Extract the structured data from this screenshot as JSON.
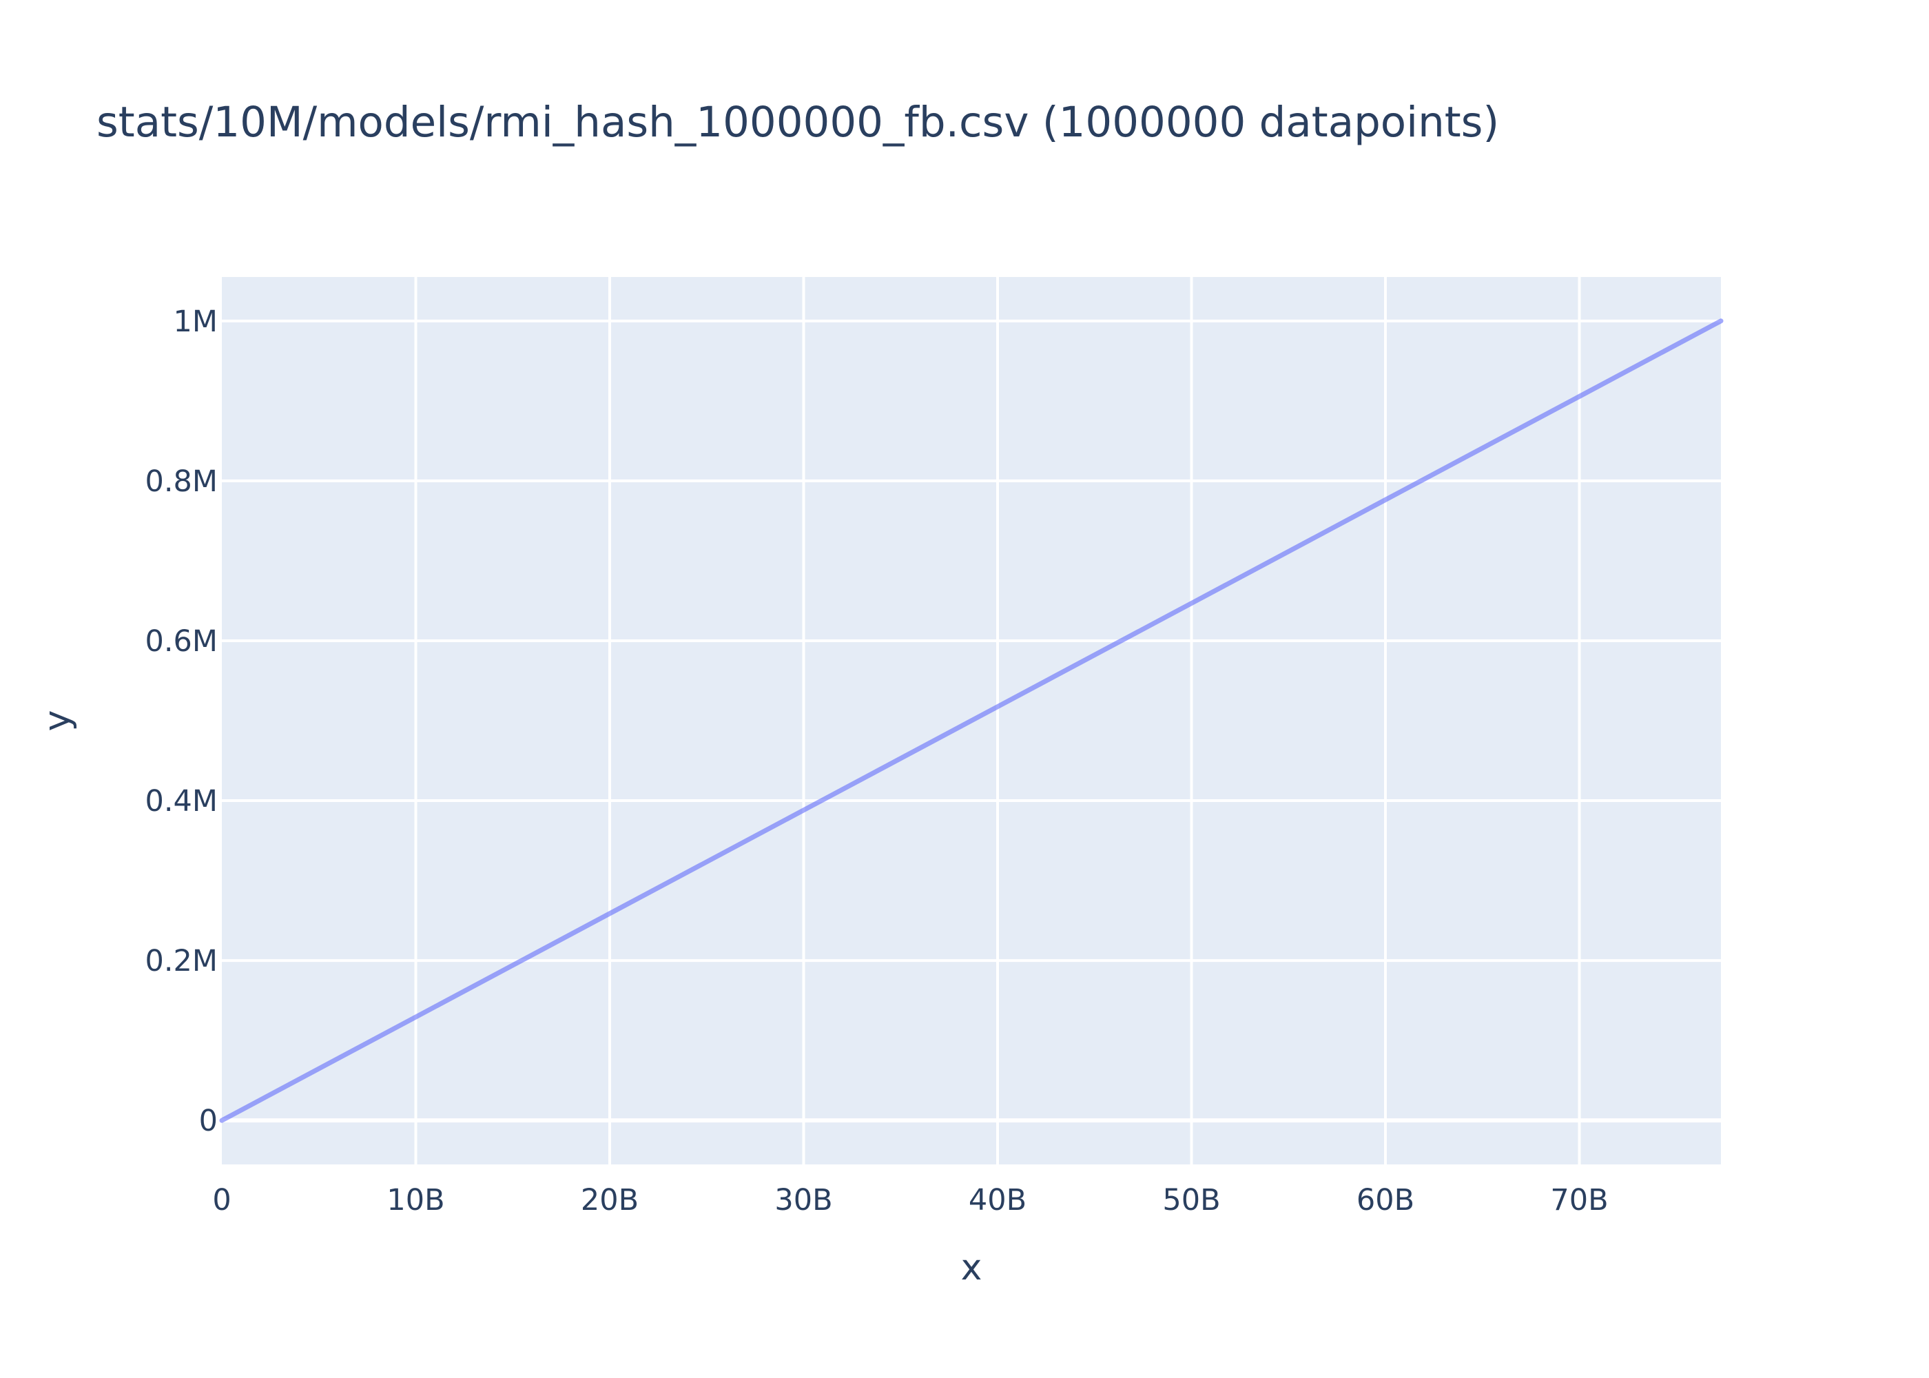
{
  "chart_data": {
    "type": "line",
    "title": "stats/10M/models/rmi_hash_1000000_fb.csv (1000000 datapoints)",
    "xlabel": "x",
    "ylabel": "y",
    "xlim": [
      0,
      77300000000
    ],
    "ylim": [
      -55000,
      1055000
    ],
    "x_ticks": [
      {
        "value": 0,
        "label": "0"
      },
      {
        "value": 10000000000,
        "label": "10B"
      },
      {
        "value": 20000000000,
        "label": "20B"
      },
      {
        "value": 30000000000,
        "label": "30B"
      },
      {
        "value": 40000000000,
        "label": "40B"
      },
      {
        "value": 50000000000,
        "label": "50B"
      },
      {
        "value": 60000000000,
        "label": "60B"
      },
      {
        "value": 70000000000,
        "label": "70B"
      }
    ],
    "y_ticks": [
      {
        "value": 0,
        "label": "0"
      },
      {
        "value": 200000,
        "label": "0.2M"
      },
      {
        "value": 400000,
        "label": "0.4M"
      },
      {
        "value": 600000,
        "label": "0.6M"
      },
      {
        "value": 800000,
        "label": "0.8M"
      },
      {
        "value": 1000000,
        "label": "1M"
      }
    ],
    "grid": true,
    "series": [
      {
        "color": "#636efa",
        "x": [
          0,
          10000000000,
          20000000000,
          30000000000,
          40000000000,
          50000000000,
          60000000000,
          70000000000,
          77300000000
        ],
        "y": [
          0,
          129400,
          258800,
          388100,
          517500,
          646900,
          776300,
          905600,
          1000000
        ]
      }
    ]
  },
  "colors": {
    "plot_background": "#e5ecf6",
    "grid": "#ffffff",
    "text": "#2a3f5f",
    "series": "#636efa"
  }
}
